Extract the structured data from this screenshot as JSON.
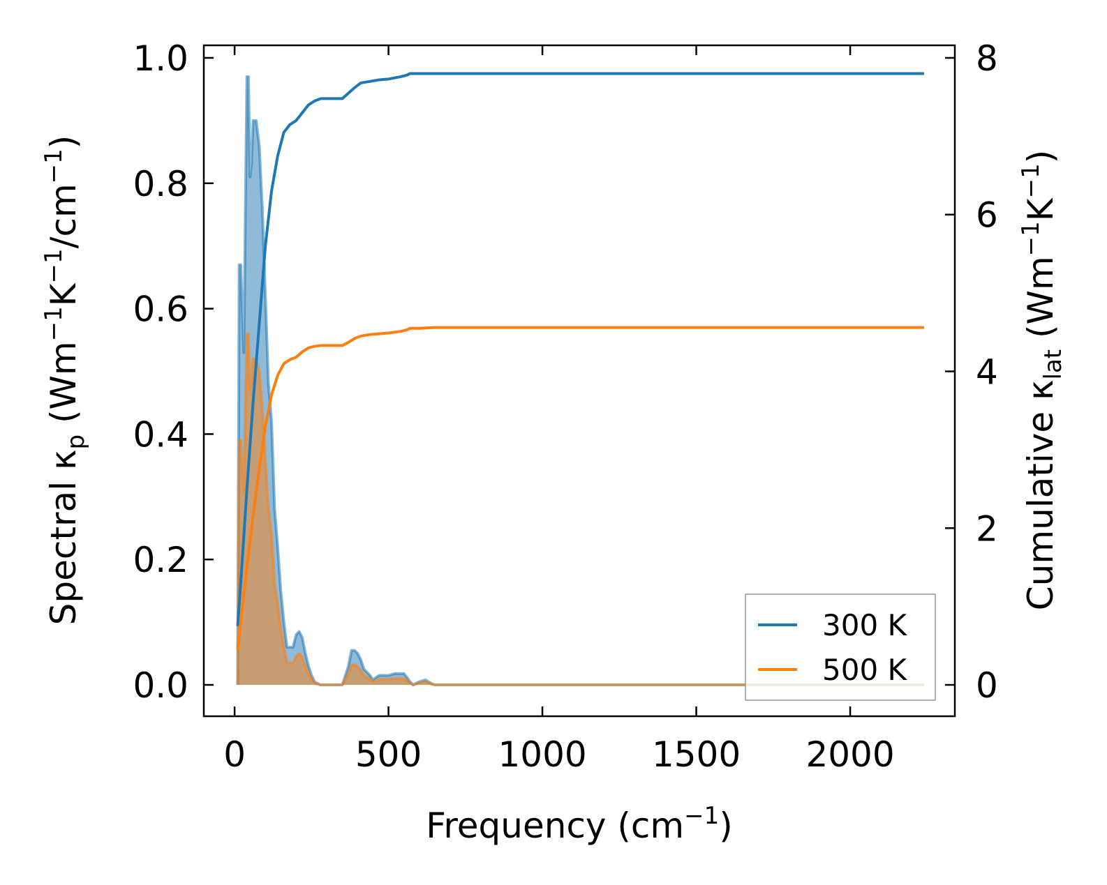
{
  "chart_data": {
    "type": "area+line (dual y-axis)",
    "title": "",
    "xlabel": {
      "main": "Frequency (cm",
      "sup": "−1",
      "end": ")"
    },
    "ylabel_left": {
      "parts": [
        {
          "t": "Spectral κ",
          "s": "n"
        },
        {
          "t": "p",
          "s": "sub"
        },
        {
          "t": " (Wm",
          "s": "n"
        },
        {
          "t": "−1",
          "s": "sup"
        },
        {
          "t": "K",
          "s": "n"
        },
        {
          "t": "−1",
          "s": "sup"
        },
        {
          "t": "/cm",
          "s": "n"
        },
        {
          "t": "−1",
          "s": "sup"
        },
        {
          "t": ")",
          "s": "n"
        }
      ]
    },
    "ylabel_right": {
      "parts": [
        {
          "t": "Cumulative κ",
          "s": "n"
        },
        {
          "t": "lat",
          "s": "sub"
        },
        {
          "t": " (Wm",
          "s": "n"
        },
        {
          "t": "−1",
          "s": "sup"
        },
        {
          "t": "K",
          "s": "n"
        },
        {
          "t": "−1",
          "s": "sup"
        },
        {
          "t": ")",
          "s": "n"
        }
      ]
    },
    "xlim": [
      -100,
      2340
    ],
    "ylim_left": [
      -0.05,
      1.02
    ],
    "ylim_right": [
      -0.4,
      8.16
    ],
    "xticks": [
      0,
      500,
      1000,
      1500,
      2000
    ],
    "yticks_left": [
      0.0,
      0.2,
      0.4,
      0.6,
      0.8,
      1.0
    ],
    "yticks_right": [
      0,
      2,
      4,
      6,
      8
    ],
    "xtick_labels": [
      "0",
      "500",
      "1000",
      "1500",
      "2000"
    ],
    "ytick_labels_left": [
      "0.0",
      "0.2",
      "0.4",
      "0.6",
      "0.8",
      "1.0"
    ],
    "ytick_labels_right": [
      "0",
      "2",
      "4",
      "6",
      "8"
    ],
    "legend_position": "lower-right",
    "series": [
      {
        "name": "300 K",
        "color": "#1f77b4",
        "spectral": {
          "x": [
            10,
            15,
            20,
            30,
            40,
            45,
            50,
            55,
            60,
            70,
            80,
            90,
            100,
            110,
            120,
            130,
            140,
            150,
            160,
            170,
            180,
            190,
            200,
            210,
            220,
            230,
            240,
            250,
            260,
            270,
            280,
            290,
            300,
            320,
            350,
            370,
            380,
            390,
            400,
            410,
            420,
            430,
            440,
            450,
            460,
            470,
            480,
            490,
            500,
            520,
            540,
            550,
            560,
            570,
            580,
            600,
            620,
            640,
            650,
            700,
            1000,
            1500,
            2000,
            2240
          ],
          "y": [
            0.0,
            0.67,
            0.67,
            0.53,
            0.97,
            0.97,
            0.81,
            0.83,
            0.9,
            0.9,
            0.86,
            0.76,
            0.62,
            0.48,
            0.42,
            0.28,
            0.22,
            0.15,
            0.1,
            0.06,
            0.06,
            0.06,
            0.08,
            0.085,
            0.075,
            0.05,
            0.03,
            0.015,
            0.005,
            0.002,
            0.0,
            0.0,
            0.0,
            0.0,
            0.0,
            0.03,
            0.055,
            0.055,
            0.05,
            0.04,
            0.025,
            0.02,
            0.015,
            0.008,
            0.012,
            0.015,
            0.015,
            0.015,
            0.015,
            0.018,
            0.018,
            0.018,
            0.012,
            0.005,
            0.0,
            0.005,
            0.008,
            0.002,
            0.0,
            0.0,
            0.0,
            0.0,
            0.0,
            0.0
          ]
        },
        "cumulative": {
          "x": [
            10,
            20,
            40,
            60,
            80,
            100,
            120,
            140,
            160,
            180,
            200,
            220,
            240,
            260,
            280,
            300,
            320,
            350,
            370,
            390,
            410,
            440,
            470,
            500,
            540,
            560,
            570,
            600,
            650,
            700,
            1000,
            1500,
            2000,
            2240
          ],
          "y": [
            0.75,
            1.3,
            2.5,
            3.6,
            4.6,
            5.6,
            6.3,
            6.75,
            7.05,
            7.15,
            7.2,
            7.3,
            7.4,
            7.45,
            7.48,
            7.48,
            7.48,
            7.48,
            7.55,
            7.62,
            7.68,
            7.7,
            7.72,
            7.73,
            7.76,
            7.78,
            7.8,
            7.8,
            7.8,
            7.8,
            7.8,
            7.8,
            7.8,
            7.8
          ]
        }
      },
      {
        "name": "500 K",
        "color": "#ff7f0e",
        "spectral": {
          "x": [
            10,
            15,
            20,
            30,
            40,
            45,
            50,
            55,
            60,
            70,
            80,
            90,
            100,
            110,
            120,
            130,
            140,
            150,
            160,
            170,
            180,
            190,
            200,
            210,
            220,
            230,
            240,
            250,
            260,
            270,
            280,
            290,
            300,
            320,
            350,
            370,
            380,
            390,
            400,
            410,
            420,
            430,
            440,
            450,
            460,
            470,
            480,
            490,
            500,
            520,
            540,
            550,
            560,
            570,
            580,
            600,
            620,
            640,
            650,
            700,
            1000,
            1500,
            2000,
            2240
          ],
          "y": [
            0.0,
            0.39,
            0.39,
            0.31,
            0.56,
            0.56,
            0.47,
            0.48,
            0.52,
            0.52,
            0.5,
            0.44,
            0.36,
            0.28,
            0.24,
            0.16,
            0.13,
            0.09,
            0.06,
            0.035,
            0.035,
            0.035,
            0.046,
            0.05,
            0.044,
            0.03,
            0.018,
            0.009,
            0.003,
            0.001,
            0.0,
            0.0,
            0.0,
            0.0,
            0.0,
            0.018,
            0.032,
            0.032,
            0.029,
            0.023,
            0.015,
            0.012,
            0.009,
            0.005,
            0.007,
            0.009,
            0.009,
            0.009,
            0.009,
            0.01,
            0.01,
            0.01,
            0.007,
            0.003,
            0.0,
            0.003,
            0.005,
            0.001,
            0.0,
            0.0,
            0.0,
            0.0,
            0.0,
            0.0
          ]
        },
        "cumulative": {
          "x": [
            10,
            20,
            40,
            60,
            80,
            100,
            120,
            140,
            160,
            180,
            200,
            220,
            240,
            260,
            280,
            300,
            320,
            350,
            370,
            390,
            410,
            440,
            470,
            500,
            540,
            560,
            570,
            600,
            650,
            700,
            1000,
            1500,
            2000,
            2240
          ],
          "y": [
            0.45,
            0.8,
            1.5,
            2.15,
            2.75,
            3.3,
            3.7,
            3.95,
            4.1,
            4.15,
            4.18,
            4.25,
            4.3,
            4.32,
            4.33,
            4.33,
            4.33,
            4.33,
            4.37,
            4.42,
            4.45,
            4.47,
            4.48,
            4.49,
            4.51,
            4.53,
            4.55,
            4.55,
            4.56,
            4.56,
            4.56,
            4.56,
            4.56,
            4.56
          ]
        }
      }
    ]
  }
}
